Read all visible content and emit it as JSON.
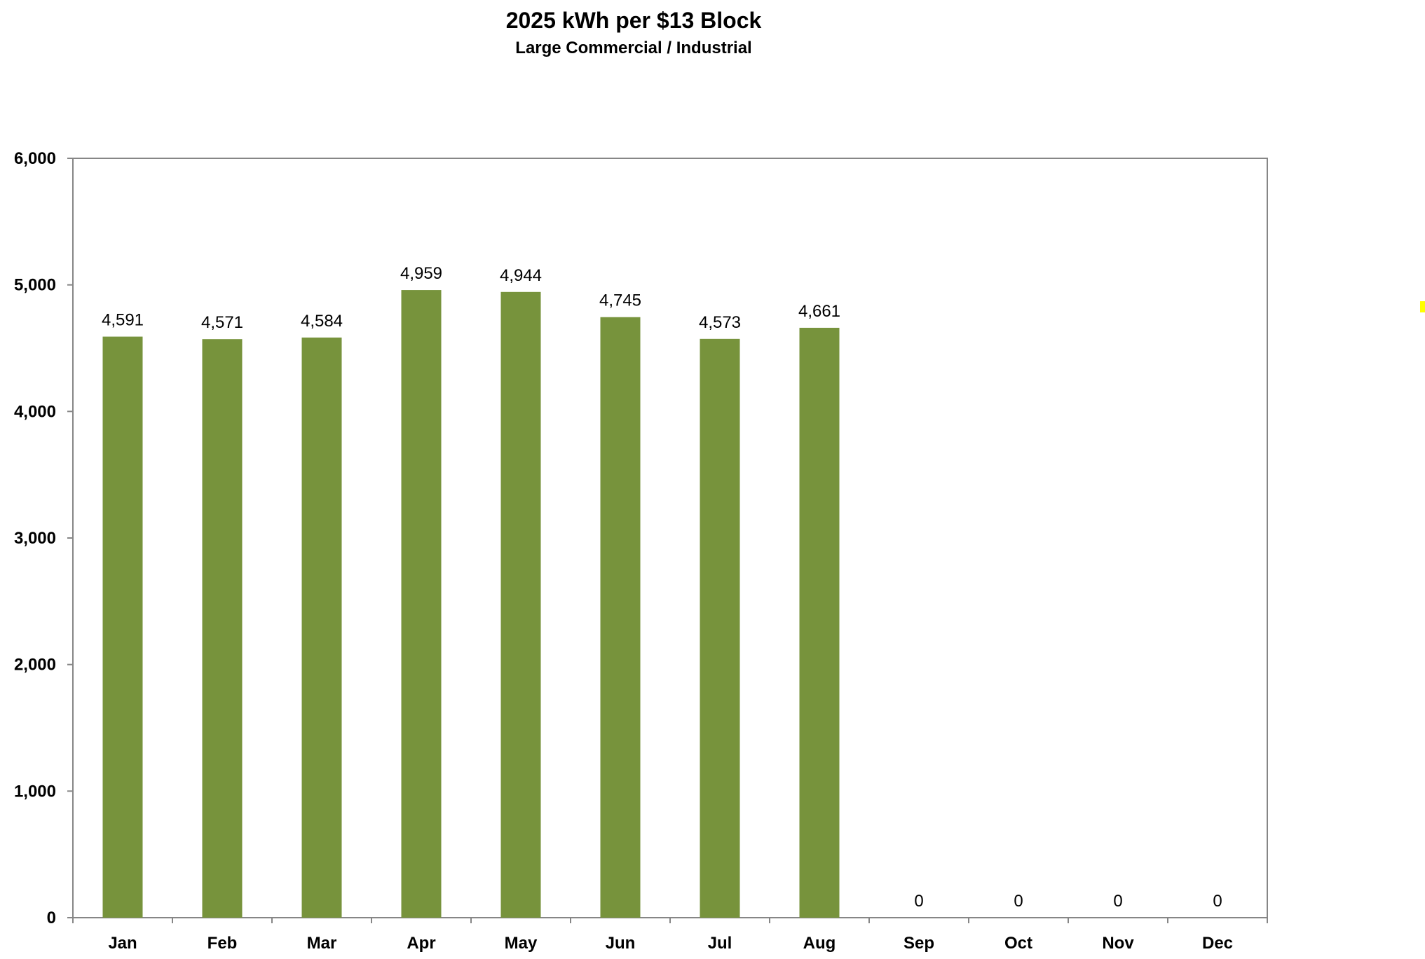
{
  "chart_data": {
    "type": "bar",
    "title": "2025 kWh per $13 Block",
    "subtitle": "Large Commercial / Industrial",
    "categories": [
      "Jan",
      "Feb",
      "Mar",
      "Apr",
      "May",
      "Jun",
      "Jul",
      "Aug",
      "Sep",
      "Oct",
      "Nov",
      "Dec"
    ],
    "values": [
      4591,
      4571,
      4584,
      4959,
      4944,
      4745,
      4573,
      4661,
      0,
      0,
      0,
      0
    ],
    "data_labels": [
      "4,591",
      "4,571",
      "4,584",
      "4,959",
      "4,944",
      "4,745",
      "4,573",
      "4,661",
      "0",
      "0",
      "0",
      "0"
    ],
    "ylim": [
      0,
      6000
    ],
    "yticks": [
      0,
      1000,
      2000,
      3000,
      4000,
      5000,
      6000
    ],
    "ytick_labels": [
      "0",
      "1,000",
      "2,000",
      "3,000",
      "4,000",
      "5,000",
      "6,000"
    ],
    "xlabel": "",
    "ylabel": "",
    "grid": false,
    "legend": "none",
    "bar_color": "#77933c",
    "marker_color": "#ffff00"
  }
}
